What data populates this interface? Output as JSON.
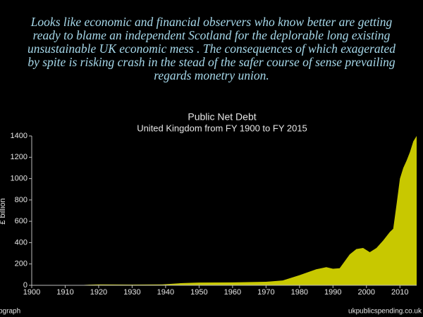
{
  "caption": {
    "lines": [
      "Looks like economic and financial observers  who know better are getting",
      "ready to  blame an independent Scotland  for the deplorable long existing",
      "unsustainable UK  economic mess . The consequences  of which exagerated",
      "by spite  is risking crash  in the stead of  the safer course of sense prevailing",
      "regards  monetry  union."
    ]
  },
  "chart_data": {
    "type": "area",
    "title": "Public Net Debt",
    "subtitle": "United Kingdom from FY 1900 to FY 2015",
    "y_label": "£ billion",
    "color": "#c8c800",
    "x": [
      1900,
      1914,
      1918,
      1920,
      1930,
      1939,
      1945,
      1950,
      1960,
      1970,
      1975,
      1980,
      1985,
      1988,
      1990,
      1992,
      1995,
      1997,
      1999,
      2001,
      2003,
      2005,
      2007,
      2008,
      2009,
      2010,
      2011,
      2012,
      2013,
      2014,
      2015
    ],
    "values": [
      0,
      1,
      7,
      8,
      7,
      8,
      21,
      26,
      27,
      33,
      45,
      95,
      150,
      170,
      155,
      160,
      290,
      340,
      350,
      310,
      350,
      420,
      500,
      530,
      760,
      1000,
      1100,
      1170,
      1250,
      1350,
      1400
    ],
    "xlim": [
      1900,
      2015
    ],
    "ylim": [
      0,
      1400
    ],
    "xticks": [
      1900,
      1910,
      1920,
      1930,
      1940,
      1950,
      1960,
      1970,
      1980,
      1990,
      2000,
      2010
    ],
    "yticks": [
      0,
      200,
      400,
      600,
      800,
      1000,
      1200,
      1400
    ]
  },
  "footer": {
    "left": "pgraph",
    "right": "ukpublicspending.co.uk"
  }
}
